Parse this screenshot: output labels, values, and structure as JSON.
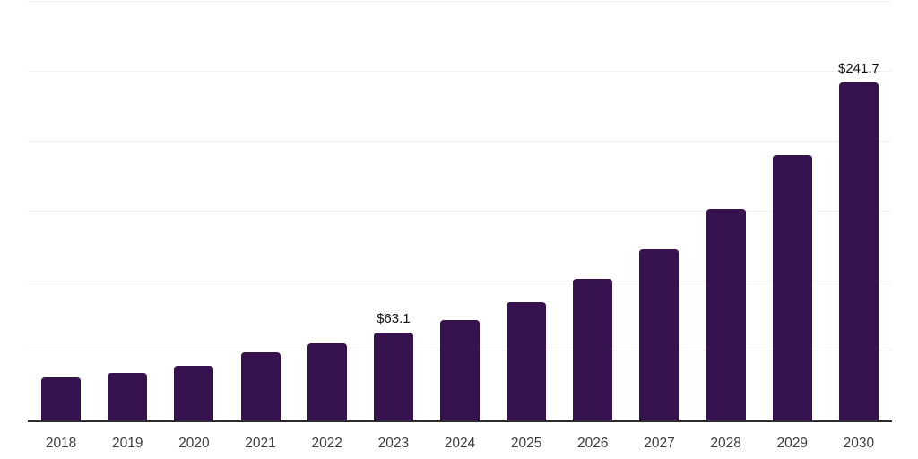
{
  "page": {
    "background_color": "#ffffff"
  },
  "chart_data": {
    "type": "bar",
    "title": "",
    "xlabel": "",
    "ylabel": "",
    "legend": "none",
    "categories": [
      "2018",
      "2019",
      "2020",
      "2021",
      "2022",
      "2023",
      "2024",
      "2025",
      "2026",
      "2027",
      "2028",
      "2029",
      "2030"
    ],
    "values": [
      31.5,
      34.8,
      39.9,
      49.4,
      55.9,
      63.1,
      72.4,
      85.2,
      101.9,
      122.9,
      151.6,
      190.0,
      241.7
    ],
    "data_labels": {
      "2023": "$63.1",
      "2030": "$241.7"
    },
    "ylim": [
      0,
      300
    ],
    "gridline_values": [
      50,
      100,
      150,
      200,
      250,
      300
    ],
    "y_tick_labels": "none",
    "grid": "horizontal",
    "colors": {
      "bar": "#36124e",
      "axis_line": "#2b2b2b",
      "gridline": "#f0f0f0",
      "x_tick_label": "#3d3d3d",
      "data_label": "#111111"
    }
  }
}
